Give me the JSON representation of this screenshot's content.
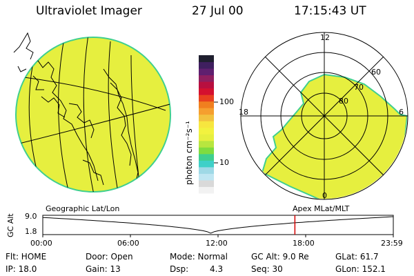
{
  "header": {
    "title": "Ultraviolet Imager",
    "date": "27 Jul 00",
    "time": "17:15:43 UT"
  },
  "colorbar": {
    "label": "photon cm⁻²s⁻¹",
    "ticks": [
      "100",
      "10"
    ],
    "scale": "log",
    "colors": [
      "#f2f2f2",
      "#d9d9d9",
      "#bfe6f2",
      "#9fd9e6",
      "#3fd0c8",
      "#3fcf8f",
      "#7fdc3f",
      "#b8e63f",
      "#e6ef3f",
      "#f2f23f",
      "#f7e63f",
      "#f2c23f",
      "#f59f2f",
      "#f07f1f",
      "#e8401f",
      "#d4102f",
      "#b80f3f",
      "#8f1f5f",
      "#5f1f6f",
      "#3f1f5f",
      "#1f1f2f"
    ]
  },
  "left_panel": {
    "caption": "Geographic Lat/Lon",
    "disk_color": "#e6ef3f",
    "rim_color": "#3fcf8f"
  },
  "right_panel": {
    "caption": "Apex MLat/MLT",
    "mlt_labels": [
      "12",
      "18",
      "6",
      "0"
    ],
    "mlat_labels": [
      "60",
      "70",
      "80"
    ],
    "fill_color": "#e6ef3f",
    "rim_color": "#3fcf8f"
  },
  "altitude_plot": {
    "y_axis_label": "GC Alt",
    "y_ticks": [
      "9.0",
      "1.8"
    ],
    "x_ticks": [
      "00:00",
      "06:00",
      "12:00",
      "18:00",
      "23:59"
    ],
    "marker_time": "17:15:43",
    "marker_color": "#d40000"
  },
  "info": {
    "row1": {
      "flt": "Flt: HOME",
      "door": "Door: Open",
      "mode": "Mode: Normal",
      "gc_alt": "GC Alt: 9.0 Re",
      "glat": "GLat:  61.7"
    },
    "row2": {
      "ip": "IP: 18.0",
      "gain": "Gain: 13",
      "dsp_label": "Dsp:",
      "dsp_value": "4.3",
      "seq": "Seq: 30",
      "glon": "GLon: 152.1"
    }
  }
}
